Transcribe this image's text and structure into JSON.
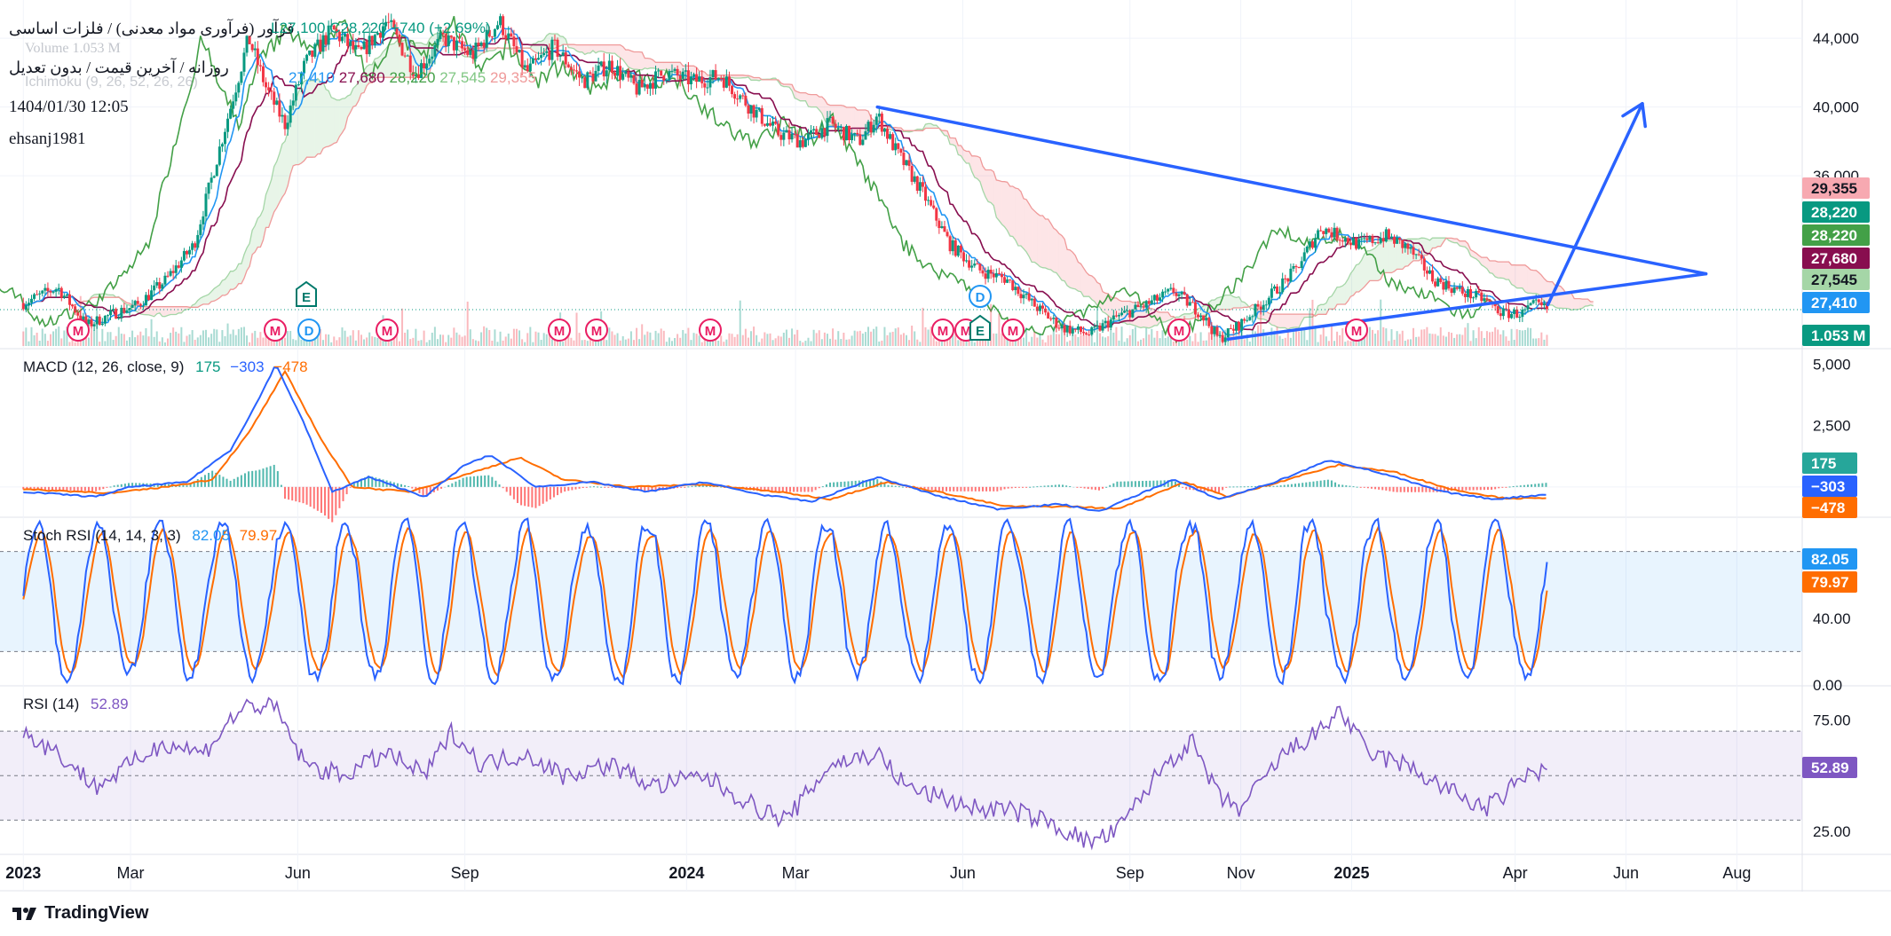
{
  "header": {
    "title_line": "فرآور (فرآوری مواد معدنی) / فلزات اساسی",
    "ohlc_fragment": "L27,100 C28,220 +740 (+2.69%)",
    "interval_line": "روزانه / آخرین قیمت / بدون تعدیل",
    "volume_label": "Volume 1.053 M",
    "ichimoku_label": "Ichimoku (9, 26, 52, 26, 26)",
    "ichimoku_values": [
      "27,410",
      "27,680",
      "28,220",
      "27,545",
      "29,355"
    ],
    "datetime": "1404/01/30 12:05",
    "author": "ehsanj1981"
  },
  "indicators": {
    "macd": {
      "label": "MACD (12, 26, close, 9)",
      "hist": "175",
      "macd": "−303",
      "signal": "−478"
    },
    "stoch": {
      "label": "Stoch RSI (14, 14, 3, 3)",
      "k": "82.05",
      "d": "79.97"
    },
    "rsi": {
      "label": "RSI (14)",
      "value": "52.89"
    }
  },
  "branding": {
    "name": "TradingView"
  },
  "colors": {
    "up": "#089981",
    "down": "#f23645",
    "blue": "#2962ff",
    "orange": "#ff6d00",
    "kijun": "#880e4f",
    "tenkan": "#2196f3",
    "lagging": "#43a047",
    "rsi": "#7e57c2",
    "trendline": "#2962ff"
  },
  "chart_data": [
    {
      "type": "candlestick",
      "pane": "price",
      "title": "فرآور (فرآوری مواد معدنی) / فلزات اساسی",
      "x_ticks": [
        "2023",
        "Mar",
        "Jun",
        "Sep",
        "2024",
        "Mar",
        "Jun",
        "Sep",
        "Nov",
        "2025",
        "Apr",
        "Jun",
        "Aug"
      ],
      "y_ticks": [
        "44,000",
        "40,000",
        "36,000"
      ],
      "ylim": [
        26000,
        45500
      ],
      "close_path": [
        [
          "2023-01-01",
          28600
        ],
        [
          "2023-01-20",
          29500
        ],
        [
          "2023-02-05",
          27300
        ],
        [
          "2023-02-20",
          28000
        ],
        [
          "2023-03-05",
          28500
        ],
        [
          "2023-03-20",
          29900
        ],
        [
          "2023-04-05",
          32000
        ],
        [
          "2023-04-20",
          38000
        ],
        [
          "2023-05-05",
          44000
        ],
        [
          "2023-05-15",
          41000
        ],
        [
          "2023-05-25",
          39000
        ],
        [
          "2023-06-05",
          42500
        ],
        [
          "2023-06-20",
          44500
        ],
        [
          "2023-07-05",
          43000
        ],
        [
          "2023-07-20",
          45000
        ],
        [
          "2023-08-05",
          42000
        ],
        [
          "2023-08-20",
          44000
        ],
        [
          "2023-09-05",
          43000
        ],
        [
          "2023-09-20",
          45000
        ],
        [
          "2023-10-05",
          42000
        ],
        [
          "2023-10-20",
          43500
        ],
        [
          "2023-11-05",
          41500
        ],
        [
          "2023-11-20",
          42500
        ],
        [
          "2023-12-05",
          41000
        ],
        [
          "2023-12-20",
          42000
        ],
        [
          "2024-01-05",
          41500
        ],
        [
          "2024-01-20",
          41800
        ],
        [
          "2024-02-05",
          40000
        ],
        [
          "2024-02-20",
          38500
        ],
        [
          "2024-03-05",
          38000
        ],
        [
          "2024-03-20",
          39000
        ],
        [
          "2024-04-05",
          38000
        ],
        [
          "2024-04-15",
          39500
        ],
        [
          "2024-04-25",
          37500
        ],
        [
          "2024-05-10",
          35000
        ],
        [
          "2024-05-25",
          32000
        ],
        [
          "2024-06-10",
          30500
        ],
        [
          "2024-06-25",
          30000
        ],
        [
          "2024-07-10",
          28500
        ],
        [
          "2024-07-25",
          27200
        ],
        [
          "2024-08-10",
          26800
        ],
        [
          "2024-08-25",
          27800
        ],
        [
          "2024-09-10",
          28500
        ],
        [
          "2024-09-25",
          29300
        ],
        [
          "2024-10-10",
          28000
        ],
        [
          "2024-10-20",
          26500
        ],
        [
          "2024-11-01",
          27400
        ],
        [
          "2024-11-15",
          28800
        ],
        [
          "2024-12-01",
          30500
        ],
        [
          "2024-12-15",
          33000
        ],
        [
          "2024-12-25",
          32500
        ],
        [
          "2025-01-05",
          32000
        ],
        [
          "2025-01-20",
          32500
        ],
        [
          "2025-02-01",
          31800
        ],
        [
          "2025-02-15",
          30000
        ],
        [
          "2025-03-01",
          29300
        ],
        [
          "2025-03-15",
          28800
        ],
        [
          "2025-03-25",
          28000
        ],
        [
          "2025-04-05",
          28000
        ],
        [
          "2025-04-12",
          28500
        ],
        [
          "2025-04-19",
          28220
        ]
      ],
      "trendlines": [
        {
          "name": "upper",
          "from": [
            "2024-04-15",
            40000
          ],
          "to": [
            "2025-07-15",
            30300
          ]
        },
        {
          "name": "lower",
          "from": [
            "2024-10-25",
            26500
          ],
          "to": [
            "2025-07-15",
            30300
          ]
        },
        {
          "name": "arrow",
          "from": [
            "2025-04-19",
            28500
          ],
          "to": [
            "2025-06-10",
            40200
          ]
        }
      ],
      "price_badges": [
        "29,355",
        "28,220",
        "28,220",
        "27,680",
        "27,545",
        "27,410",
        "1.053 M"
      ],
      "event_markers": [
        "M",
        "M",
        "D",
        "M",
        "M",
        "M",
        "M",
        "M",
        "M",
        "M",
        "M",
        "M",
        "E",
        "D",
        "E"
      ]
    },
    {
      "type": "line",
      "pane": "macd",
      "y_ticks": [
        "5,000",
        "2,500"
      ],
      "ylim": [
        -1200,
        5600
      ],
      "macd_path": [
        [
          "2023-01-01",
          -200
        ],
        [
          "2023-02-10",
          -400
        ],
        [
          "2023-03-01",
          0
        ],
        [
          "2023-04-01",
          200
        ],
        [
          "2023-04-25",
          1500
        ],
        [
          "2023-05-10",
          3500
        ],
        [
          "2023-05-20",
          5000
        ],
        [
          "2023-06-05",
          2500
        ],
        [
          "2023-06-20",
          -200
        ],
        [
          "2023-07-10",
          400
        ],
        [
          "2023-08-10",
          -400
        ],
        [
          "2023-09-01",
          900
        ],
        [
          "2023-09-15",
          1300
        ],
        [
          "2023-10-10",
          0
        ],
        [
          "2023-11-10",
          200
        ],
        [
          "2023-12-10",
          -200
        ],
        [
          "2024-01-10",
          200
        ],
        [
          "2024-02-10",
          -300
        ],
        [
          "2024-03-10",
          -600
        ],
        [
          "2024-04-15",
          400
        ],
        [
          "2024-05-20",
          -400
        ],
        [
          "2024-06-20",
          -900
        ],
        [
          "2024-07-25",
          -700
        ],
        [
          "2024-08-15",
          -1000
        ],
        [
          "2024-09-25",
          300
        ],
        [
          "2024-10-20",
          -500
        ],
        [
          "2024-11-20",
          200
        ],
        [
          "2024-12-20",
          1100
        ],
        [
          "2025-01-20",
          500
        ],
        [
          "2025-02-20",
          -200
        ],
        [
          "2025-03-20",
          -500
        ],
        [
          "2025-04-19",
          -303
        ]
      ],
      "signal_path": [
        [
          "2023-01-01",
          -100
        ],
        [
          "2023-02-20",
          -250
        ],
        [
          "2023-03-20",
          0
        ],
        [
          "2023-04-15",
          300
        ],
        [
          "2023-05-05",
          2200
        ],
        [
          "2023-05-25",
          4700
        ],
        [
          "2023-06-15",
          1800
        ],
        [
          "2023-07-01",
          0
        ],
        [
          "2023-08-01",
          -200
        ],
        [
          "2023-09-10",
          700
        ],
        [
          "2023-10-01",
          1200
        ],
        [
          "2023-10-25",
          300
        ],
        [
          "2023-12-01",
          0
        ],
        [
          "2024-01-10",
          100
        ],
        [
          "2024-02-20",
          -200
        ],
        [
          "2024-03-20",
          -500
        ],
        [
          "2024-04-20",
          200
        ],
        [
          "2024-05-25",
          -300
        ],
        [
          "2024-06-25",
          -800
        ],
        [
          "2024-08-01",
          -800
        ],
        [
          "2024-08-25",
          -900
        ],
        [
          "2024-10-01",
          200
        ],
        [
          "2024-10-25",
          -400
        ],
        [
          "2024-12-01",
          400
        ],
        [
          "2024-12-25",
          900
        ],
        [
          "2025-01-25",
          600
        ],
        [
          "2025-02-25",
          -100
        ],
        [
          "2025-03-25",
          -450
        ],
        [
          "2025-04-19",
          -478
        ]
      ],
      "hist_last": 175,
      "macd_last": -303,
      "signal_last": -478
    },
    {
      "type": "line",
      "pane": "stoch_rsi",
      "y_ticks": [
        "40.00",
        "0.00"
      ],
      "ylim": [
        0,
        100
      ],
      "bands": [
        20,
        80
      ],
      "k_last": 82.05,
      "d_last": 79.97
    },
    {
      "type": "line",
      "pane": "rsi",
      "y_ticks": [
        "75.00",
        "25.00"
      ],
      "ylim": [
        15,
        90
      ],
      "bands": [
        30,
        50,
        70
      ],
      "rsi_path": [
        [
          "2023-01-01",
          70
        ],
        [
          "2023-01-20",
          60
        ],
        [
          "2023-02-10",
          45
        ],
        [
          "2023-03-01",
          55
        ],
        [
          "2023-03-20",
          65
        ],
        [
          "2023-04-10",
          60
        ],
        [
          "2023-04-25",
          75
        ],
        [
          "2023-05-05",
          82
        ],
        [
          "2023-05-20",
          80
        ],
        [
          "2023-06-05",
          55
        ],
        [
          "2023-06-25",
          50
        ],
        [
          "2023-07-20",
          60
        ],
        [
          "2023-08-10",
          50
        ],
        [
          "2023-08-25",
          70
        ],
        [
          "2023-09-10",
          55
        ],
        [
          "2023-10-05",
          60
        ],
        [
          "2023-10-25",
          50
        ],
        [
          "2023-11-20",
          55
        ],
        [
          "2023-12-15",
          45
        ],
        [
          "2024-01-10",
          50
        ],
        [
          "2024-02-10",
          35
        ],
        [
          "2024-02-25",
          30
        ],
        [
          "2024-03-20",
          55
        ],
        [
          "2024-04-15",
          60
        ],
        [
          "2024-05-01",
          45
        ],
        [
          "2024-05-20",
          40
        ],
        [
          "2024-06-10",
          35
        ],
        [
          "2024-06-25",
          35
        ],
        [
          "2024-07-15",
          30
        ],
        [
          "2024-08-10",
          20
        ],
        [
          "2024-08-25",
          25
        ],
        [
          "2024-09-20",
          55
        ],
        [
          "2024-10-05",
          65
        ],
        [
          "2024-10-20",
          40
        ],
        [
          "2024-11-01",
          35
        ],
        [
          "2024-11-25",
          60
        ],
        [
          "2024-12-15",
          70
        ],
        [
          "2024-12-25",
          80
        ],
        [
          "2025-01-10",
          60
        ],
        [
          "2025-01-30",
          55
        ],
        [
          "2025-02-20",
          45
        ],
        [
          "2025-03-15",
          35
        ],
        [
          "2025-03-25",
          40
        ],
        [
          "2025-04-05",
          50
        ],
        [
          "2025-04-19",
          52.89
        ]
      ],
      "last": 52.89
    }
  ]
}
